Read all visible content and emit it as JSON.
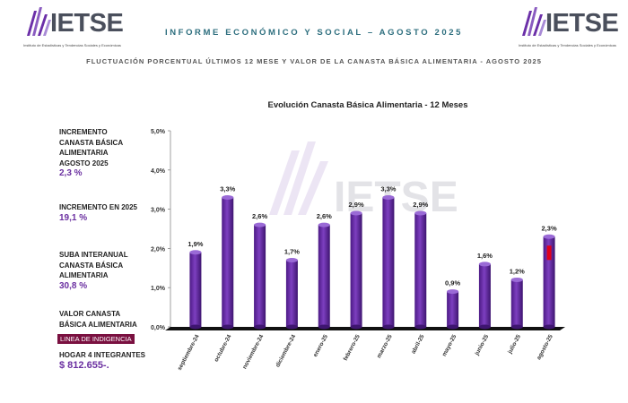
{
  "logo": {
    "word": "IETSE",
    "sub": "Instituto de Estadísticas y Tendencias Sociales y Económicas"
  },
  "header": {
    "title": "INFORME ECONÓMICO Y SOCIAL – AGOSTO 2025",
    "subtitle": "FLUCTUACIÓN PORCENTUAL ÚLTIMOS 12 MESE Y VALOR DE LA  CANASTA BÁSICA ALIMENTARIA - AGOSTO 2025"
  },
  "sidebar": {
    "block1": {
      "lines": [
        "INCREMENTO",
        "CANASTA BÁSICA",
        "ALIMENTARIA",
        "AGOSTO 2025"
      ],
      "value": "2,3 %"
    },
    "block2": {
      "lines": [
        "INCREMENTO EN 2025"
      ],
      "value": "19,1 %"
    },
    "block3": {
      "lines": [
        "SUBA INTERANUAL",
        "CANASTA BÁSICA",
        "ALIMENTARIA"
      ],
      "value": "30,8 %"
    },
    "block4": {
      "lines": [
        "VALOR CANASTA",
        "BÁSICA ALIMENTARIA"
      ]
    },
    "indigencia": "LINEA DE INDIGENCIA",
    "block5": {
      "lines": [
        "HOGAR 4 INTEGRANTES"
      ],
      "value": "$ 812.655-."
    }
  },
  "watermark": "IETSE",
  "chart_data": {
    "type": "bar",
    "title": "Evolución Canasta Básica Alimentaria - 12 Meses",
    "categories": [
      "septiembre-24",
      "octubre-24",
      "noviembre-24",
      "diciembre-24",
      "enero-25",
      "febrero-25",
      "marzo-25",
      "abril-25",
      "mayo-25",
      "junio-25",
      "julio-25",
      "agosto-25"
    ],
    "values": [
      1.9,
      3.3,
      2.6,
      1.7,
      2.6,
      2.9,
      3.3,
      2.9,
      0.9,
      1.6,
      1.2,
      2.3
    ],
    "labels": [
      "1,9%",
      "3,3%",
      "2,6%",
      "1,7%",
      "2,6%",
      "2,9%",
      "3,3%",
      "2,9%",
      "0,9%",
      "1,6%",
      "1,2%",
      "2,3%"
    ],
    "ylim": [
      0,
      5
    ],
    "yticks": [
      "0,0%",
      "1,0%",
      "2,0%",
      "3,0%",
      "4,0%",
      "5,0%"
    ],
    "grid": false,
    "bar_color": "#6b2fa8",
    "bar_dark": "#3e1570",
    "floor_color": "#111111",
    "highlight_color": "#e0001b"
  }
}
